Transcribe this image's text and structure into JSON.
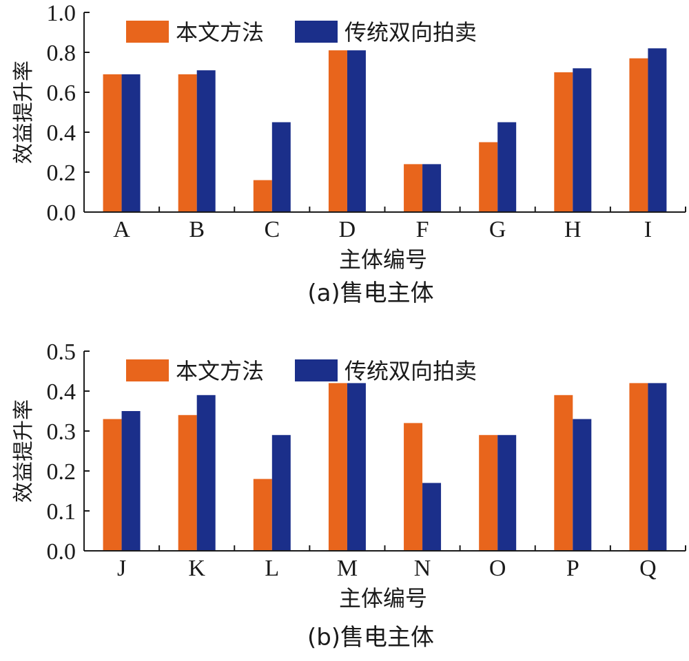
{
  "legend_labels": [
    "本文方法",
    "传统双向拍卖"
  ],
  "colors": {
    "series1": "#E8651C",
    "series2": "#1B2F8A",
    "axis": "#1a1a1a"
  },
  "chart_data": [
    {
      "type": "bar",
      "caption": "(a)售电主体",
      "xlabel": "主体编号",
      "ylabel": "效益提升率",
      "categories": [
        "A",
        "B",
        "C",
        "D",
        "F",
        "G",
        "H",
        "I"
      ],
      "ylim": [
        0,
        1.0
      ],
      "yticks": [
        "0.0",
        "0.2",
        "0.4",
        "0.6",
        "0.8",
        "1.0"
      ],
      "legend_position": "top",
      "grid": false,
      "series": [
        {
          "name": "本文方法",
          "values": [
            0.69,
            0.69,
            0.16,
            0.81,
            0.24,
            0.35,
            0.7,
            0.77
          ]
        },
        {
          "name": "传统双向拍卖",
          "values": [
            0.69,
            0.71,
            0.45,
            0.81,
            0.24,
            0.45,
            0.72,
            0.82
          ]
        }
      ]
    },
    {
      "type": "bar",
      "caption": "(b)售电主体",
      "xlabel": "主体编号",
      "ylabel": "效益提升率",
      "categories": [
        "J",
        "K",
        "L",
        "M",
        "N",
        "O",
        "P",
        "Q"
      ],
      "ylim": [
        0,
        0.5
      ],
      "yticks": [
        "0.0",
        "0.1",
        "0.2",
        "0.3",
        "0.4",
        "0.5"
      ],
      "legend_position": "top",
      "grid": false,
      "series": [
        {
          "name": "本文方法",
          "values": [
            0.33,
            0.34,
            0.18,
            0.42,
            0.32,
            0.29,
            0.39,
            0.42
          ]
        },
        {
          "name": "传统双向拍卖",
          "values": [
            0.35,
            0.39,
            0.29,
            0.42,
            0.17,
            0.29,
            0.33,
            0.42
          ]
        }
      ]
    }
  ]
}
